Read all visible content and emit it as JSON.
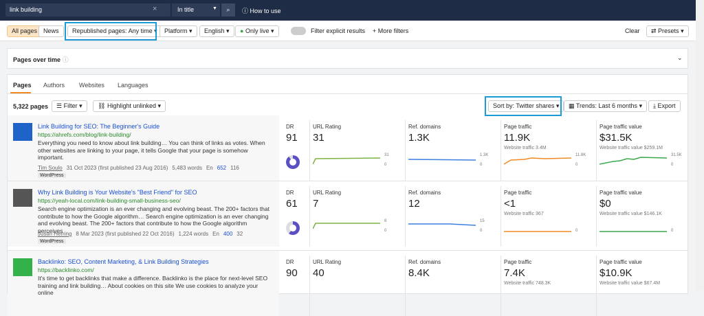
{
  "search": {
    "query": "link building",
    "mode": "In title",
    "help": "How to use"
  },
  "filters": {
    "all_pages": "All pages",
    "news": "News",
    "republished": "Republished pages: Any time",
    "platform": "Platform",
    "language": "English",
    "live": "Only live",
    "explicit": "Filter explicit results",
    "more": "More filters",
    "clear": "Clear",
    "presets": "Presets"
  },
  "pages_over_time": "Pages over time",
  "tabs": [
    "Pages",
    "Authors",
    "Websites",
    "Languages"
  ],
  "toolbar": {
    "count": "5,322 pages",
    "filter": "Filter",
    "highlight": "Highlight unlinked",
    "sort": "Sort by: Twitter shares",
    "trends": "Trends: Last 6 months",
    "export": "Export"
  },
  "metric_labels": {
    "dr": "DR",
    "url_rating": "URL Rating",
    "ref_domains": "Ref. domains",
    "page_traffic": "Page traffic",
    "page_traffic_value": "Page traffic value"
  },
  "results": [
    {
      "title": "Link Building for SEO: The Beginner's Guide",
      "url": "https://ahrefs.com/blog/link-building/",
      "description": "Everything you need to know about link building… You can think of links as votes. When other websites are linking to your page, it tells Google that your page is somehow important.",
      "author": "Tim Soulo",
      "date": "31 Oct 2023 (first published 23 Aug 2016)",
      "words": "5,483 words",
      "lang": "En",
      "twitter": "652",
      "pinterest": "116",
      "platform": "WordPress",
      "dr": "91",
      "url_rating": "31",
      "ref_domains": "1.3K",
      "page_traffic": "11.9K",
      "page_traffic_value": "$31.5K",
      "website_traffic": "Website traffic 3.4M",
      "website_traffic_value": "Website traffic value $259.1M",
      "ur_axis": [
        "31",
        "0"
      ],
      "rd_axis": [
        "1.3K",
        "0"
      ],
      "pt_axis": [
        "11.8K",
        "0"
      ],
      "ptv_axis": [
        "31.5K",
        "0"
      ]
    },
    {
      "title": "Why Link Building is Your Website's \"Best Friend\" for SEO",
      "url": "https://yeah-local.com/link-building-small-business-seo/",
      "description": "Search engine optimization is an ever changing and evolving beast. The 200+ factors that contribute to how the Google algorithm… Search engine optimization is an ever changing and evolving beast. The 200+ factors that contribute to how the Google algorithm perceives",
      "author": "Justin Herring",
      "date": "8 Mar 2023 (first published 22 Oct 2016)",
      "words": "1,224 words",
      "lang": "En",
      "twitter": "400",
      "pinterest": "32",
      "platform": "WordPress",
      "dr": "61",
      "url_rating": "7",
      "ref_domains": "12",
      "page_traffic": "<1",
      "page_traffic_value": "$0",
      "website_traffic": "Website traffic 367",
      "website_traffic_value": "Website traffic value $146.1K",
      "ur_axis": [
        "8",
        "0"
      ],
      "rd_axis": [
        "15",
        "0"
      ],
      "pt_axis": [
        "0"
      ],
      "ptv_axis": [
        "0"
      ]
    },
    {
      "title": "Backlinko: SEO, Content Marketing, & Link Building Strategies",
      "url": "https://backlinko.com/",
      "description": "It's time to get backlinks that make a difference. Backlinko is the place for next-level SEO training and link building… About cookies on this site We use cookies to analyze your online",
      "dr": "90",
      "url_rating": "40",
      "ref_domains": "8.4K",
      "page_traffic": "7.4K",
      "page_traffic_value": "$10.9K",
      "website_traffic": "Website traffic 748.3K",
      "website_traffic_value": "Website traffic value $67.4M"
    }
  ]
}
